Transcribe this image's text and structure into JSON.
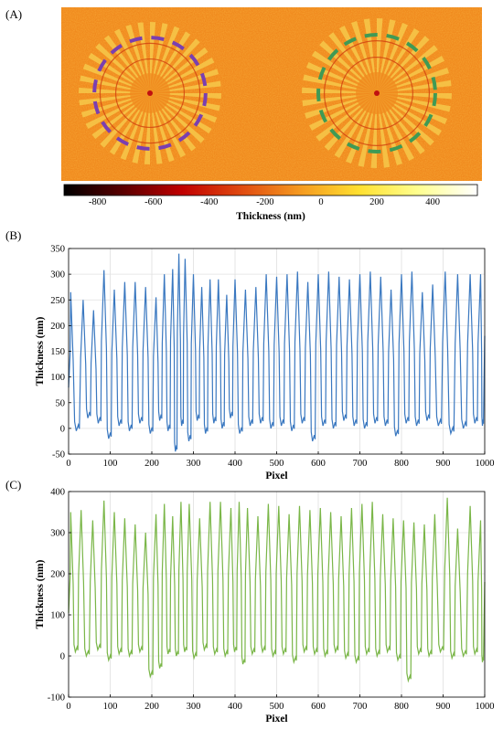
{
  "figure": {
    "panel_labels": [
      "(A)",
      "(B)",
      "(C)"
    ]
  },
  "colors": {
    "background_map": "#f08a1e",
    "grating": "#f6c84a",
    "purple_dash": "#7a3fb0",
    "green_dash": "#3f9a55",
    "blue_line": "#3a78c0",
    "green_line": "#7ab648"
  },
  "chart_data": [
    {
      "type": "heatmap",
      "panel": "(A)",
      "colorbar": {
        "ticks": [
          "-800",
          "-600",
          "-400",
          "-200",
          "0",
          "200",
          "400"
        ],
        "tick_values": [
          -800,
          -600,
          -400,
          -200,
          0,
          200,
          400
        ],
        "range": [
          -920,
          560
        ],
        "stops": [
          "#000000",
          "#5a0000",
          "#c00000",
          "#e04a10",
          "#f59a20",
          "#ffe030",
          "#ffff90",
          "#ffffff"
        ]
      },
      "title": "",
      "xlabel": "Thickness (nm)"
    },
    {
      "type": "line",
      "panel": "(B)",
      "xlabel": "Pixel",
      "ylabel": "Thickness (nm)",
      "xlim": [
        0,
        1000
      ],
      "ylim": [
        -50,
        350
      ],
      "x_ticks": [
        0,
        100,
        200,
        300,
        400,
        500,
        600,
        700,
        800,
        900,
        1000
      ],
      "y_ticks": [
        -50,
        0,
        50,
        100,
        150,
        200,
        250,
        300,
        350
      ],
      "grid": true,
      "series": [
        {
          "peaks_x": [
            5,
            35,
            60,
            85,
            110,
            135,
            160,
            185,
            210,
            230,
            250,
            265,
            280,
            300,
            320,
            340,
            360,
            380,
            400,
            425,
            450,
            475,
            500,
            525,
            550,
            575,
            600,
            625,
            650,
            675,
            700,
            725,
            750,
            775,
            800,
            825,
            850,
            875,
            905,
            935,
            965,
            990
          ],
          "peaks_y": [
            265,
            250,
            230,
            308,
            270,
            285,
            285,
            275,
            255,
            300,
            310,
            340,
            330,
            300,
            275,
            290,
            290,
            260,
            290,
            270,
            275,
            300,
            295,
            300,
            305,
            285,
            300,
            305,
            295,
            290,
            300,
            305,
            295,
            270,
            300,
            305,
            265,
            280,
            305,
            300,
            300,
            300
          ],
          "troughs_y": [
            -5,
            20,
            10,
            -20,
            5,
            -5,
            10,
            -10,
            15,
            -5,
            -45,
            5,
            -25,
            15,
            -10,
            10,
            0,
            20,
            -10,
            5,
            10,
            0,
            5,
            -5,
            10,
            -25,
            5,
            0,
            15,
            5,
            0,
            10,
            5,
            -15,
            10,
            5,
            15,
            5,
            -10,
            0,
            10,
            5
          ]
        }
      ]
    },
    {
      "type": "line",
      "panel": "(C)",
      "xlabel": "Pixel",
      "ylabel": "Thickness (nm)",
      "xlim": [
        0,
        1000
      ],
      "ylim": [
        -100,
        400
      ],
      "x_ticks": [
        0,
        100,
        200,
        300,
        400,
        500,
        600,
        700,
        800,
        900,
        1000
      ],
      "y_ticks": [
        -100,
        0,
        100,
        200,
        300,
        400
      ],
      "grid": true,
      "series": [
        {
          "peaks_x": [
            5,
            30,
            58,
            85,
            110,
            135,
            160,
            185,
            210,
            230,
            250,
            270,
            290,
            315,
            340,
            365,
            390,
            410,
            430,
            455,
            480,
            505,
            530,
            555,
            580,
            605,
            630,
            655,
            680,
            705,
            730,
            755,
            780,
            805,
            830,
            855,
            880,
            910,
            935,
            965,
            990
          ],
          "peaks_y": [
            350,
            355,
            330,
            378,
            350,
            335,
            320,
            300,
            345,
            370,
            340,
            375,
            370,
            335,
            375,
            375,
            360,
            375,
            360,
            340,
            370,
            365,
            345,
            365,
            355,
            360,
            350,
            340,
            360,
            370,
            375,
            345,
            335,
            330,
            325,
            320,
            345,
            385,
            310,
            365,
            330
          ],
          "troughs_y": [
            10,
            0,
            15,
            -10,
            5,
            0,
            10,
            -50,
            -30,
            5,
            0,
            10,
            -5,
            15,
            5,
            0,
            10,
            -20,
            5,
            10,
            0,
            5,
            -15,
            10,
            5,
            0,
            10,
            -5,
            -15,
            5,
            0,
            10,
            -10,
            -60,
            5,
            0,
            10,
            -5,
            0,
            5,
            -15
          ]
        }
      ]
    }
  ]
}
